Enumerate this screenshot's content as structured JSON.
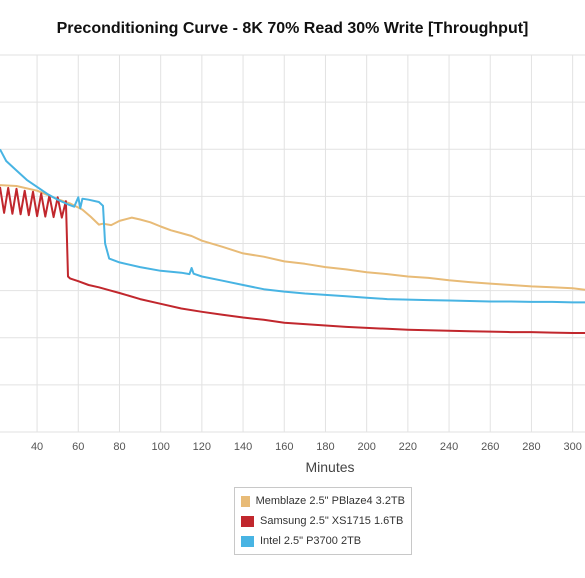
{
  "chart_data": {
    "type": "line",
    "title": "Preconditioning Curve - 8K 70% Read 30% Write [Throughput]",
    "xlabel": "Minutes",
    "ylabel": "",
    "xlim": [
      22,
      306
    ],
    "ylim": [
      0,
      8
    ],
    "grid": true,
    "legend_position": "bottom-center",
    "x_ticks": [
      "40",
      "60",
      "80",
      "100",
      "120",
      "140",
      "160",
      "180",
      "200",
      "220",
      "240",
      "260",
      "280",
      "300"
    ],
    "series": [
      {
        "name": "Memblaze 2.5\" PBlaze4 3.2TB",
        "color": "#e8bb77",
        "x": [
          22,
          30,
          40,
          50,
          56,
          62,
          66,
          70,
          72,
          76,
          80,
          86,
          90,
          95,
          100,
          105,
          110,
          115,
          120,
          130,
          140,
          150,
          160,
          170,
          180,
          190,
          200,
          210,
          220,
          230,
          240,
          250,
          260,
          270,
          280,
          290,
          300,
          306
        ],
        "y": [
          5.24,
          5.22,
          5.12,
          4.94,
          4.85,
          4.72,
          4.57,
          4.4,
          4.42,
          4.39,
          4.48,
          4.55,
          4.51,
          4.45,
          4.36,
          4.28,
          4.22,
          4.16,
          4.06,
          3.93,
          3.79,
          3.72,
          3.62,
          3.57,
          3.5,
          3.45,
          3.39,
          3.35,
          3.3,
          3.27,
          3.22,
          3.18,
          3.15,
          3.12,
          3.09,
          3.07,
          3.05,
          3.02
        ]
      },
      {
        "name": "Samsung 2.5\" XS1715 1.6TB",
        "color": "#c1272d",
        "x": [
          22,
          24,
          26,
          28,
          30,
          32,
          34,
          36,
          38,
          40,
          42,
          44,
          46,
          48,
          50,
          52,
          54,
          55,
          56,
          60,
          65,
          70,
          75,
          80,
          90,
          100,
          110,
          120,
          130,
          140,
          150,
          160,
          170,
          180,
          190,
          200,
          210,
          220,
          230,
          240,
          250,
          260,
          270,
          280,
          290,
          300,
          306
        ],
        "y": [
          5.2,
          4.65,
          5.18,
          4.63,
          5.16,
          4.62,
          5.12,
          4.6,
          5.1,
          4.58,
          5.06,
          4.57,
          5.02,
          4.56,
          4.98,
          4.55,
          4.9,
          3.3,
          3.26,
          3.2,
          3.12,
          3.07,
          3.01,
          2.95,
          2.82,
          2.72,
          2.62,
          2.55,
          2.49,
          2.43,
          2.38,
          2.32,
          2.29,
          2.26,
          2.23,
          2.21,
          2.19,
          2.17,
          2.16,
          2.15,
          2.14,
          2.13,
          2.12,
          2.12,
          2.11,
          2.1,
          2.1
        ]
      },
      {
        "name": "Intel 2.5\" P3700 2TB",
        "color": "#48b4e3",
        "x": [
          22,
          25,
          30,
          35,
          40,
          45,
          50,
          55,
          58,
          60,
          61,
          62,
          65,
          70,
          72,
          73,
          75,
          80,
          90,
          100,
          110,
          114,
          115,
          116,
          120,
          130,
          140,
          150,
          160,
          170,
          180,
          190,
          200,
          210,
          220,
          230,
          240,
          250,
          260,
          270,
          280,
          290,
          300,
          306
        ],
        "y": [
          6.0,
          5.75,
          5.55,
          5.35,
          5.2,
          5.05,
          4.93,
          4.83,
          4.78,
          4.98,
          4.75,
          4.95,
          4.93,
          4.88,
          4.8,
          4.0,
          3.68,
          3.6,
          3.5,
          3.42,
          3.38,
          3.35,
          3.48,
          3.36,
          3.3,
          3.21,
          3.12,
          3.03,
          2.98,
          2.94,
          2.91,
          2.88,
          2.85,
          2.82,
          2.81,
          2.8,
          2.79,
          2.78,
          2.77,
          2.77,
          2.76,
          2.76,
          2.75,
          2.75
        ]
      }
    ]
  }
}
